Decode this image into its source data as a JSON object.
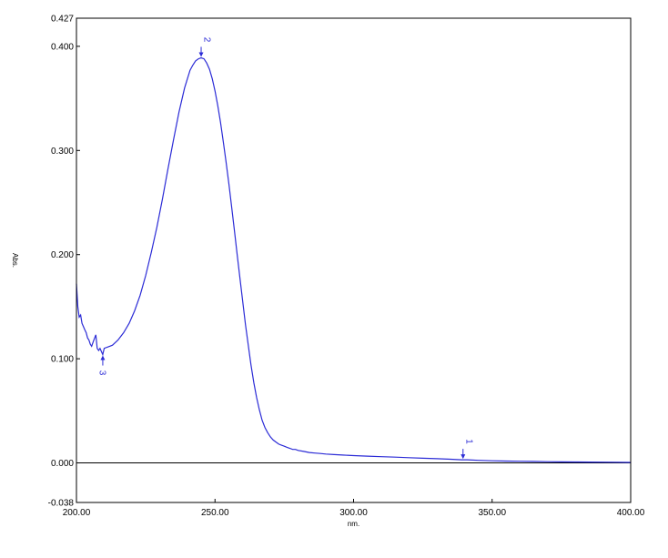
{
  "chart_data": {
    "type": "line",
    "xlabel": "nm.",
    "ylabel": "Abs.",
    "xlim": [
      200,
      400
    ],
    "ylim": [
      -0.038,
      0.427
    ],
    "x_ticks": [
      {
        "value": 200,
        "label": "200.00"
      },
      {
        "value": 250,
        "label": "250.00"
      },
      {
        "value": 300,
        "label": "300.00"
      },
      {
        "value": 350,
        "label": "350.00"
      },
      {
        "value": 400,
        "label": "400.00"
      }
    ],
    "y_ticks": [
      {
        "value": 0.427,
        "label": "0.427"
      },
      {
        "value": 0.4,
        "label": "0.400"
      },
      {
        "value": 0.3,
        "label": "0.300"
      },
      {
        "value": 0.2,
        "label": "0.200"
      },
      {
        "value": 0.1,
        "label": "0.100"
      },
      {
        "value": 0.0,
        "label": "0.000"
      },
      {
        "value": -0.038,
        "label": "-0.038"
      }
    ],
    "baseline": 0.0,
    "grid": false,
    "colors": {
      "line": "#2b2bd6",
      "axis": "#000000"
    },
    "series": [
      {
        "x": [
          200,
          200.5,
          201,
          201.5,
          202,
          202.5,
          203,
          203.5,
          204,
          204.5,
          205,
          205.5,
          206,
          207,
          207.5,
          208,
          208.5,
          209,
          209.5,
          210,
          211,
          212,
          213,
          215,
          217,
          219,
          221,
          223,
          225,
          227,
          229,
          231,
          233,
          235,
          237,
          239,
          241,
          242,
          243,
          244,
          245,
          246,
          247,
          248,
          249,
          250,
          251,
          252,
          253,
          254,
          255,
          256,
          257,
          258,
          259,
          260,
          261,
          262,
          263,
          264,
          265,
          266,
          267,
          268,
          269,
          270,
          271,
          272,
          273,
          274,
          275,
          276,
          277,
          278,
          279,
          280,
          282,
          284,
          286,
          288,
          290,
          293,
          296,
          300,
          305,
          310,
          315,
          320,
          325,
          330,
          335,
          339,
          340,
          341,
          345,
          350,
          355,
          360,
          365,
          370,
          375,
          380,
          385,
          390,
          395,
          400
        ],
        "y": [
          0.172,
          0.15,
          0.14,
          0.142,
          0.134,
          0.131,
          0.128,
          0.125,
          0.12,
          0.118,
          0.114,
          0.112,
          0.116,
          0.123,
          0.11,
          0.108,
          0.11,
          0.107,
          0.104,
          0.11,
          0.111,
          0.112,
          0.113,
          0.118,
          0.125,
          0.134,
          0.146,
          0.161,
          0.18,
          0.202,
          0.226,
          0.253,
          0.282,
          0.31,
          0.337,
          0.36,
          0.377,
          0.382,
          0.386,
          0.388,
          0.389,
          0.388,
          0.384,
          0.378,
          0.369,
          0.357,
          0.343,
          0.327,
          0.308,
          0.289,
          0.268,
          0.246,
          0.223,
          0.2,
          0.177,
          0.155,
          0.133,
          0.113,
          0.094,
          0.077,
          0.063,
          0.051,
          0.041,
          0.034,
          0.029,
          0.025,
          0.022,
          0.02,
          0.018,
          0.017,
          0.016,
          0.015,
          0.014,
          0.013,
          0.013,
          0.012,
          0.011,
          0.01,
          0.0095,
          0.009,
          0.0085,
          0.008,
          0.0075,
          0.007,
          0.0065,
          0.006,
          0.0055,
          0.005,
          0.0045,
          0.004,
          0.0035,
          0.003,
          0.003,
          0.003,
          0.0025,
          0.002,
          0.0018,
          0.0016,
          0.0014,
          0.0012,
          0.001,
          0.0009,
          0.0008,
          0.0007,
          0.0006,
          0.0005
        ]
      }
    ],
    "peaks": [
      {
        "label": "1",
        "x": 339.5,
        "y": 0.003,
        "direction": "up"
      },
      {
        "label": "2",
        "x": 245,
        "y": 0.389,
        "direction": "up"
      },
      {
        "label": "3",
        "x": 209.5,
        "y": 0.104,
        "direction": "down"
      }
    ]
  }
}
